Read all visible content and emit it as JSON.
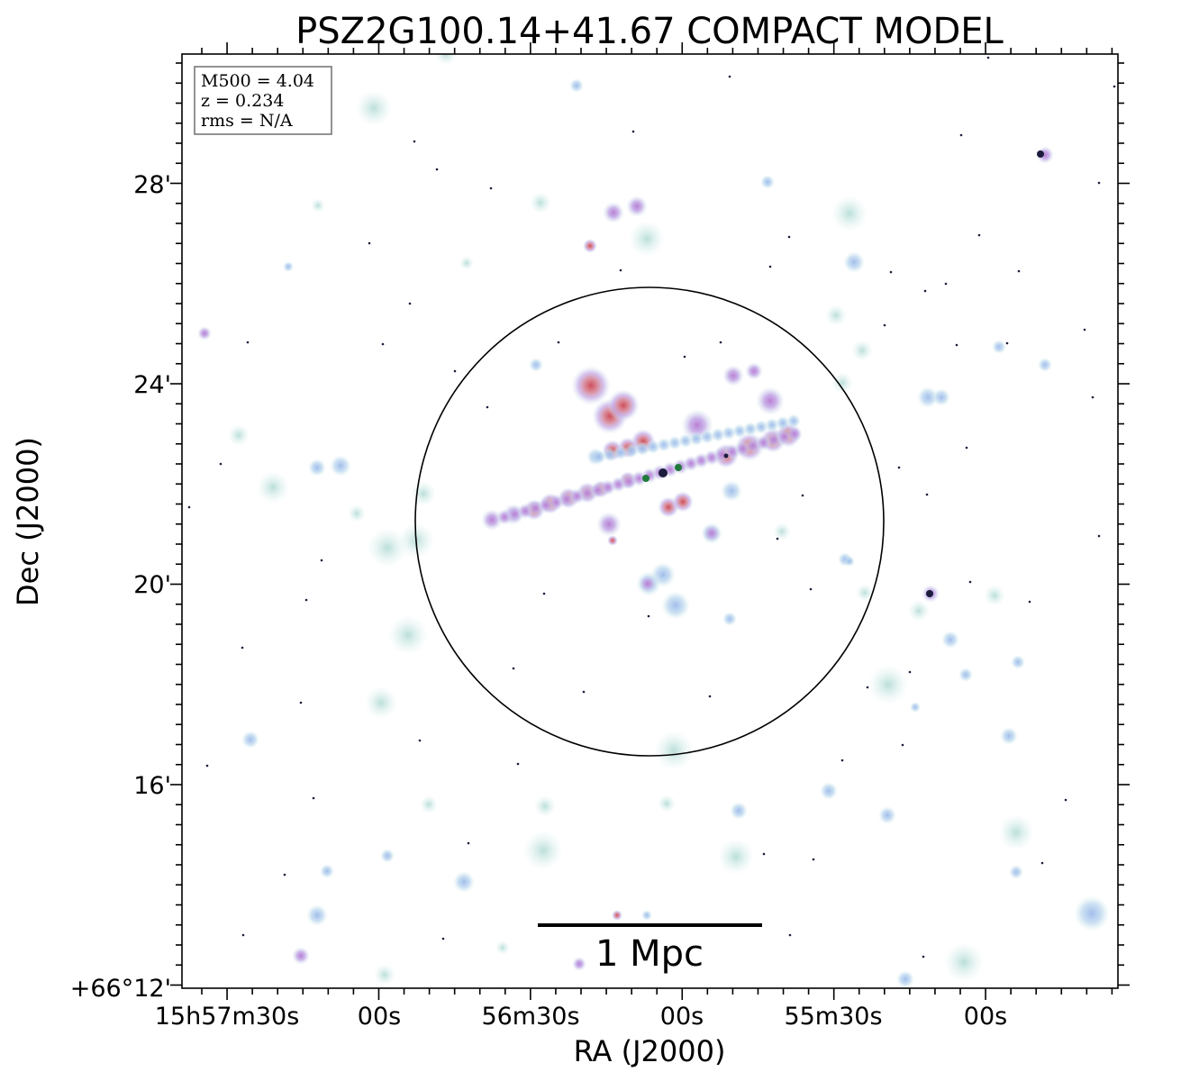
{
  "chart_data": {
    "type": "scatter",
    "title": "PSZ2G100.14+41.67 COMPACT MODEL",
    "xlabel": "RA (J2000)",
    "ylabel": "Dec (J2000)",
    "x_ticks": [
      "15h57m30s",
      "00s",
      "56m30s",
      "00s",
      "55m30s",
      "00s"
    ],
    "y_ticks": [
      "+66°12'",
      "16'",
      "20'",
      "24'",
      "28'"
    ],
    "info_box": [
      "M500 = 4.04",
      "z = 0.234",
      "rms = N/A"
    ],
    "scale_bar_label": "1 Mpc",
    "grid": false,
    "colors": {
      "faint_halo": "#b9e1dc",
      "halo": "#a9c9ec",
      "medium": "#c39ddf",
      "bright": "#d9787c",
      "core_dark": "#1c1c3c",
      "core_green": "#1f7a3a",
      "circle": "#000000"
    }
  }
}
